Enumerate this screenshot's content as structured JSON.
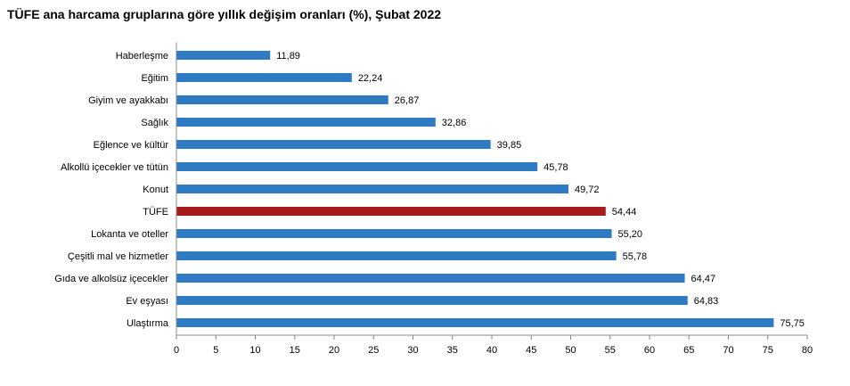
{
  "title": "TÜFE ana harcama gruplarına göre yıllık değişim oranları (%), Şubat 2022",
  "chart_data": {
    "type": "bar",
    "orientation": "horizontal",
    "title": "TÜFE ana harcama gruplarına göre yıllık değişim oranları (%), Şubat 2022",
    "categories": [
      "Haberleşme",
      "Eğitim",
      "Giyim ve ayakkabı",
      "Sağlık",
      "Eğlence ve kültür",
      "Alkollü içecekler ve tütün",
      "Konut",
      "TÜFE",
      "Lokanta ve oteller",
      "Çeşitli mal ve hizmetler",
      "Gıda ve alkolsüz içecekler",
      "Ev eşyası",
      "Ulaştırma"
    ],
    "values": [
      11.89,
      22.24,
      26.87,
      32.86,
      39.85,
      45.78,
      49.72,
      54.44,
      55.2,
      55.78,
      64.47,
      64.83,
      75.75
    ],
    "value_labels": [
      "11,89",
      "22,24",
      "26,87",
      "32,86",
      "39,85",
      "45,78",
      "49,72",
      "54,44",
      "55,20",
      "55,78",
      "64,47",
      "64,83",
      "75,75"
    ],
    "highlight_category": "TÜFE",
    "xlim": [
      0,
      80
    ],
    "xticks": [
      0,
      5,
      10,
      15,
      20,
      25,
      30,
      35,
      40,
      45,
      50,
      55,
      60,
      65,
      70,
      75,
      80
    ],
    "colors": {
      "bar": "#2e7bc4",
      "highlight": "#a61c1c",
      "axis": "#888888"
    },
    "grid": false,
    "legend": "none"
  }
}
